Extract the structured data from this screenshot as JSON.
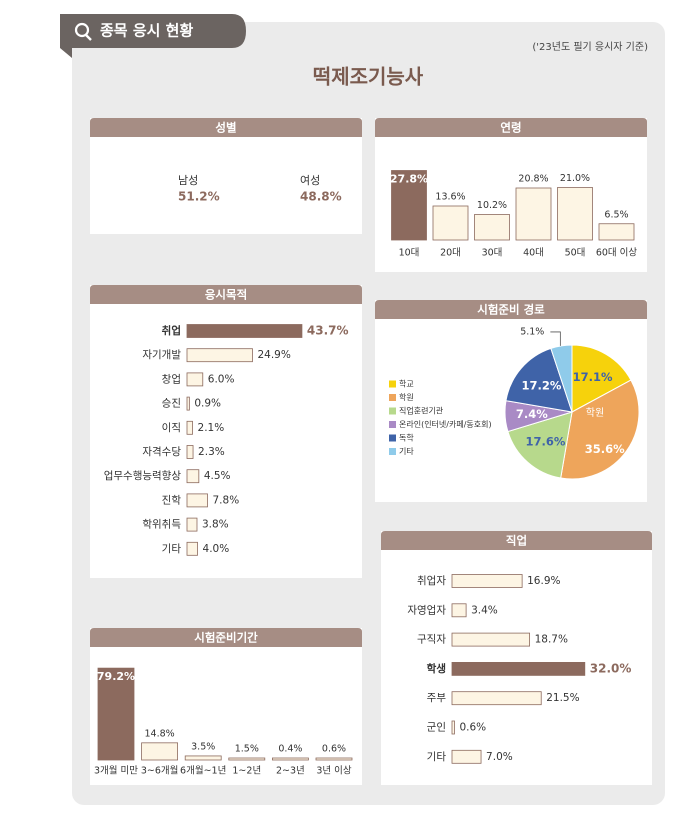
{
  "header": {
    "badge": "종목 응시 현황",
    "note": "('23년도 필기 응시자 기준)",
    "title": "떡제조기능사"
  },
  "chart_data": [
    {
      "type": "pictogram",
      "title": "성별",
      "categories": [
        "남성",
        "여성"
      ],
      "values": [
        51.2,
        48.8
      ],
      "value_labels": [
        "51.2%",
        "48.8%"
      ]
    },
    {
      "type": "bar",
      "orientation": "vertical",
      "title": "연령",
      "categories": [
        "10대",
        "20대",
        "30대",
        "40대",
        "50대",
        "60대 이상"
      ],
      "values": [
        27.8,
        13.6,
        10.2,
        20.8,
        21.0,
        6.5
      ],
      "value_labels": [
        "27.8%",
        "13.6%",
        "10.2%",
        "20.8%",
        "21.0%",
        "6.5%"
      ],
      "color": "#fdf5e4",
      "highlight_color": "#8c6a5e"
    },
    {
      "type": "bar",
      "orientation": "horizontal",
      "title": "응시목적",
      "categories": [
        "취업",
        "자기개발",
        "창업",
        "승진",
        "이직",
        "자격수당",
        "업무수행능력향상",
        "진학",
        "학위취득",
        "기타"
      ],
      "values": [
        43.7,
        24.9,
        6.0,
        0.9,
        2.1,
        2.3,
        4.5,
        7.8,
        3.8,
        4.0
      ],
      "value_labels": [
        "43.7%",
        "24.9%",
        "6.0%",
        "0.9%",
        "2.1%",
        "2.3%",
        "4.5%",
        "7.8%",
        "3.8%",
        "4.0%"
      ],
      "color": "#fdf5e4",
      "highlight_color": "#8c6a5e"
    },
    {
      "type": "pie",
      "title": "시험준비 경로",
      "categories": [
        "학교",
        "학원",
        "직업훈련기관",
        "온라인(인터넷/카페/동호회)",
        "독학",
        "기타"
      ],
      "values": [
        17.1,
        35.6,
        17.6,
        7.4,
        17.2,
        5.1
      ],
      "value_labels": [
        "17.1%",
        "35.6%",
        "17.6%",
        "7.4%",
        "17.2%",
        "5.1%"
      ],
      "colors": [
        "#f6d20c",
        "#eea55b",
        "#b7d98c",
        "#a98ac5",
        "#3f63a8",
        "#8fcbea"
      ]
    },
    {
      "type": "bar",
      "orientation": "horizontal",
      "title": "직업",
      "categories": [
        "취업자",
        "자영업자",
        "구직자",
        "학생",
        "주부",
        "군인",
        "기타"
      ],
      "values": [
        16.9,
        3.4,
        18.7,
        32.0,
        21.5,
        0.6,
        7.0
      ],
      "value_labels": [
        "16.9%",
        "3.4%",
        "18.7%",
        "32.0%",
        "21.5%",
        "0.6%",
        "7.0%"
      ],
      "color": "#fdf5e4",
      "highlight_color": "#8c6a5e"
    },
    {
      "type": "bar",
      "orientation": "vertical",
      "title": "시험준비기간",
      "categories": [
        "3개월 미만",
        "3~6개월",
        "6개월~1년",
        "1~2년",
        "2~3년",
        "3년 이상"
      ],
      "values": [
        79.2,
        14.8,
        3.5,
        1.5,
        0.4,
        0.6
      ],
      "value_labels": [
        "79.2%",
        "14.8%",
        "3.5%",
        "1.5%",
        "0.4%",
        "0.6%"
      ],
      "color": "#fdf5e4",
      "highlight_color": "#8c6a5e"
    }
  ]
}
